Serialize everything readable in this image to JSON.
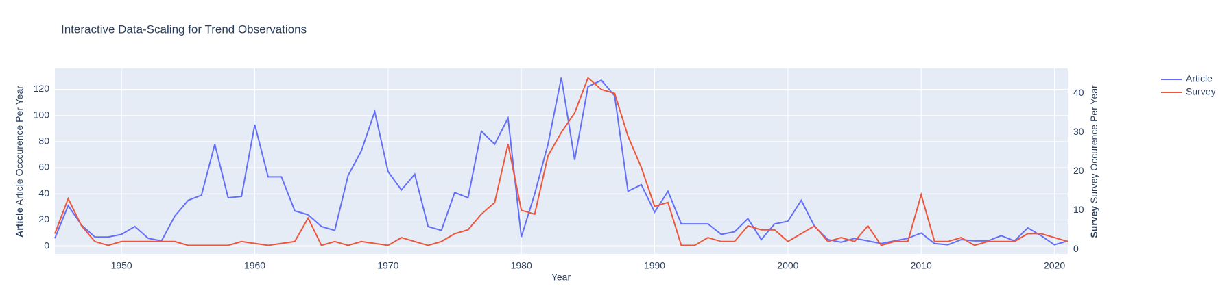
{
  "chart_data": {
    "type": "line",
    "title": "Interactive Data-Scaling for Trend Observations",
    "x_label": "Year",
    "y_label_bold": "Article",
    "y_label": "Article Occcurence Per Year",
    "y2_label_bold": "Survey",
    "y2_label": "Survey Occurence Per Year",
    "x": [
      1945,
      1946,
      1947,
      1948,
      1949,
      1950,
      1951,
      1952,
      1953,
      1954,
      1955,
      1956,
      1957,
      1958,
      1959,
      1960,
      1961,
      1962,
      1963,
      1964,
      1965,
      1966,
      1967,
      1968,
      1969,
      1970,
      1971,
      1972,
      1973,
      1974,
      1975,
      1976,
      1977,
      1978,
      1979,
      1980,
      1981,
      1982,
      1983,
      1984,
      1985,
      1986,
      1987,
      1988,
      1989,
      1990,
      1991,
      1992,
      1993,
      1994,
      1995,
      1996,
      1997,
      1998,
      1999,
      2000,
      2001,
      2002,
      2003,
      2004,
      2005,
      2006,
      2007,
      2008,
      2009,
      2010,
      2011,
      2012,
      2013,
      2014,
      2015,
      2016,
      2017,
      2018,
      2019,
      2020,
      2021
    ],
    "series": [
      {
        "name": "Article",
        "color": "#636efa",
        "axis": "y",
        "values": [
          6,
          31,
          16,
          7,
          7,
          9,
          15,
          6,
          4,
          23,
          35,
          39,
          78,
          37,
          38,
          93,
          53,
          53,
          27,
          24,
          15,
          12,
          54,
          73,
          103,
          57,
          43,
          55,
          15,
          12,
          41,
          37,
          88,
          78,
          98,
          7,
          40,
          78,
          129,
          66,
          122,
          127,
          115,
          42,
          47,
          26,
          42,
          17,
          17,
          17,
          9,
          11,
          21,
          5,
          17,
          19,
          35,
          15,
          5,
          3,
          6,
          4,
          2,
          4,
          6,
          10,
          2,
          1,
          5,
          4,
          4,
          8,
          4,
          14,
          8,
          1,
          4
        ]
      },
      {
        "name": "Survey",
        "color": "#EF553B",
        "axis": "y2",
        "values": [
          4,
          13,
          6,
          2,
          1,
          2,
          2,
          2,
          2,
          2,
          1,
          1,
          1,
          1,
          2,
          1.5,
          1,
          1.5,
          2,
          8,
          1,
          2,
          1,
          2,
          1.5,
          1,
          3,
          2,
          1,
          2,
          4,
          5,
          9,
          12,
          27,
          10,
          9,
          24,
          30,
          35,
          44,
          41,
          40,
          29,
          21,
          11,
          12,
          1,
          1,
          3,
          2,
          2,
          6,
          5,
          5,
          2,
          4,
          6,
          2,
          3,
          2,
          6,
          1,
          2,
          2,
          14,
          2,
          2,
          3,
          1,
          2,
          2,
          2,
          4,
          4,
          3,
          2
        ]
      }
    ],
    "xlim": [
      1945,
      2021
    ],
    "xticks": [
      1950,
      1960,
      1970,
      1980,
      1990,
      2000,
      2010,
      2020
    ],
    "ylim": [
      -6,
      136
    ],
    "yticks": [
      0,
      20,
      40,
      60,
      80,
      100,
      120
    ],
    "y2lim": [
      -1.2,
      46.4
    ],
    "y2ticks": [
      0,
      10,
      20,
      30,
      40
    ],
    "grid": true,
    "legend": "top-right"
  }
}
